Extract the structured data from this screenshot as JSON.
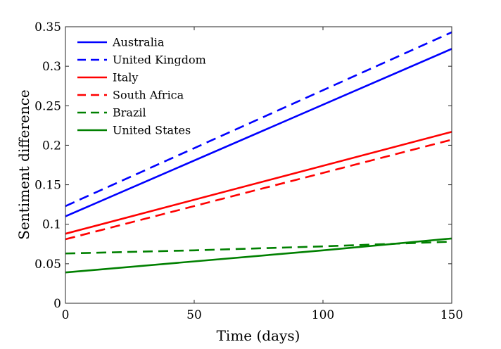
{
  "chart_data": {
    "type": "line",
    "title": "",
    "xlabel": "Time (days)",
    "ylabel": "Sentiment difference",
    "xlim": [
      0,
      150
    ],
    "ylim": [
      0,
      0.35
    ],
    "xticks": [
      0,
      50,
      100,
      150
    ],
    "xtick_labels": [
      "0",
      "50",
      "100",
      "150"
    ],
    "yticks": [
      0,
      0.05,
      0.1,
      0.15,
      0.2,
      0.25,
      0.3,
      0.35
    ],
    "ytick_labels": [
      "0",
      "0.05",
      "0.1",
      "0.15",
      "0.2",
      "0.25",
      "0.3",
      "0.35"
    ],
    "grid": false,
    "legend_position": "top-left",
    "series": [
      {
        "name": "Australia",
        "color": "#0000ff",
        "dash": "solid",
        "x": [
          0,
          150
        ],
        "y": [
          0.11,
          0.322
        ]
      },
      {
        "name": "United Kingdom",
        "color": "#0000ff",
        "dash": "dashed",
        "x": [
          0,
          150
        ],
        "y": [
          0.123,
          0.343
        ]
      },
      {
        "name": "Italy",
        "color": "#ff0000",
        "dash": "solid",
        "x": [
          0,
          150
        ],
        "y": [
          0.088,
          0.217
        ]
      },
      {
        "name": "South Africa",
        "color": "#ff0000",
        "dash": "dashed",
        "x": [
          0,
          150
        ],
        "y": [
          0.081,
          0.207
        ]
      },
      {
        "name": "Brazil",
        "color": "#008000",
        "dash": "dashed",
        "x": [
          0,
          50,
          100,
          150
        ],
        "y": [
          0.063,
          0.067,
          0.072,
          0.078
        ]
      },
      {
        "name": "United States",
        "color": "#008000",
        "dash": "solid",
        "x": [
          0,
          50,
          100,
          150
        ],
        "y": [
          0.039,
          0.053,
          0.067,
          0.082
        ]
      }
    ]
  }
}
